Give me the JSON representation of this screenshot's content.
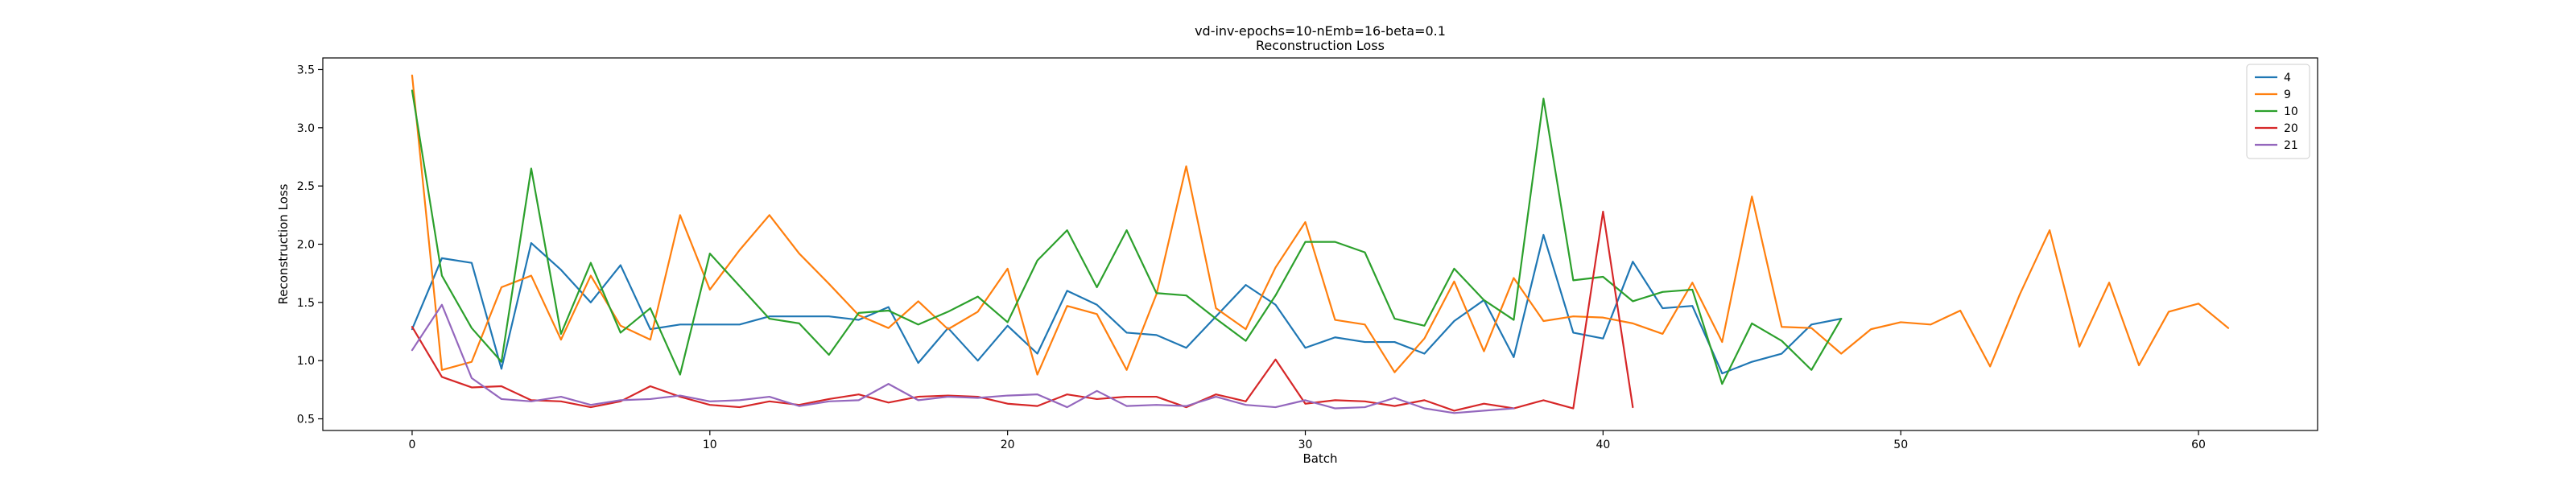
{
  "chart_data": {
    "type": "line",
    "title": "vd-inv-epochs=10-nEmb=16-beta=0.1",
    "subtitle": "Reconstruction Loss",
    "xlabel": "Batch",
    "ylabel": "Reconstruction Loss",
    "xlim": [
      -3,
      64
    ],
    "ylim": [
      0.4,
      3.6
    ],
    "xticks": [
      0,
      10,
      20,
      30,
      40,
      50,
      60
    ],
    "yticks": [
      0.5,
      1.0,
      1.5,
      2.0,
      2.5,
      3.0,
      3.5
    ],
    "xtick_labels": [
      "0",
      "10",
      "20",
      "30",
      "40",
      "50",
      "60"
    ],
    "ytick_labels": [
      "0.5",
      "1.0",
      "1.5",
      "2.0",
      "2.5",
      "3.0",
      "3.5"
    ],
    "grid": false,
    "legend_position": "top-right",
    "series": [
      {
        "name": "4",
        "color": "#1f77b4",
        "values": [
          1.27,
          1.88,
          1.84,
          0.93,
          2.01,
          1.78,
          1.5,
          1.82,
          1.27,
          1.31,
          1.31,
          1.31,
          1.38,
          1.38,
          1.38,
          1.35,
          1.46,
          0.98,
          1.28,
          1.0,
          1.3,
          1.06,
          1.6,
          1.48,
          1.24,
          1.22,
          1.11,
          1.38,
          1.65,
          1.48,
          1.11,
          1.2,
          1.16,
          1.16,
          1.06,
          1.34,
          1.52,
          1.03,
          2.08,
          1.24,
          1.19,
          1.85,
          1.45,
          1.47,
          0.89,
          0.99,
          1.06,
          1.31,
          1.36
        ]
      },
      {
        "name": "9",
        "color": "#ff7f0e",
        "values": [
          3.45,
          0.92,
          0.99,
          1.63,
          1.73,
          1.18,
          1.73,
          1.3,
          1.18,
          2.25,
          1.61,
          1.95,
          2.25,
          1.92,
          1.66,
          1.39,
          1.28,
          1.51,
          1.27,
          1.42,
          1.79,
          0.88,
          1.47,
          1.4,
          0.92,
          1.57,
          2.67,
          1.45,
          1.27,
          1.8,
          2.19,
          1.35,
          1.31,
          0.9,
          1.19,
          1.68,
          1.08,
          1.71,
          1.34,
          1.38,
          1.37,
          1.32,
          1.23,
          1.67,
          1.16,
          2.41,
          1.29,
          1.28,
          1.06,
          1.27,
          1.33,
          1.31,
          1.43,
          0.95,
          1.57,
          2.12,
          1.12,
          1.67,
          0.96,
          1.42,
          1.49,
          1.28
        ]
      },
      {
        "name": "10",
        "color": "#2ca02c",
        "values": [
          3.32,
          1.73,
          1.28,
          0.99,
          2.65,
          1.23,
          1.84,
          1.24,
          1.45,
          0.88,
          1.92,
          1.64,
          1.36,
          1.32,
          1.05,
          1.41,
          1.43,
          1.31,
          1.42,
          1.55,
          1.33,
          1.86,
          2.12,
          1.63,
          2.12,
          1.58,
          1.56,
          1.36,
          1.17,
          1.56,
          2.02,
          2.02,
          1.93,
          1.36,
          1.3,
          1.79,
          1.52,
          1.35,
          3.25,
          1.69,
          1.72,
          1.51,
          1.59,
          1.61,
          0.8,
          1.32,
          1.17,
          0.92,
          1.36
        ]
      },
      {
        "name": "20",
        "color": "#d62728",
        "values": [
          1.29,
          0.86,
          0.77,
          0.78,
          0.66,
          0.65,
          0.6,
          0.65,
          0.78,
          0.69,
          0.62,
          0.6,
          0.65,
          0.62,
          0.67,
          0.71,
          0.64,
          0.69,
          0.7,
          0.69,
          0.63,
          0.61,
          0.71,
          0.67,
          0.69,
          0.69,
          0.6,
          0.71,
          0.65,
          1.01,
          0.63,
          0.66,
          0.65,
          0.61,
          0.66,
          0.57,
          0.63,
          0.59,
          0.66,
          0.59,
          2.28,
          0.6
        ]
      },
      {
        "name": "21",
        "color": "#9467bd",
        "values": [
          1.09,
          1.48,
          0.85,
          0.67,
          0.65,
          0.69,
          0.62,
          0.66,
          0.67,
          0.7,
          0.65,
          0.66,
          0.69,
          0.61,
          0.65,
          0.66,
          0.8,
          0.66,
          0.69,
          0.68,
          0.7,
          0.71,
          0.6,
          0.74,
          0.61,
          0.62,
          0.61,
          0.69,
          0.62,
          0.6,
          0.66,
          0.59,
          0.6,
          0.68,
          0.59,
          0.55,
          0.57,
          0.59
        ]
      }
    ]
  }
}
